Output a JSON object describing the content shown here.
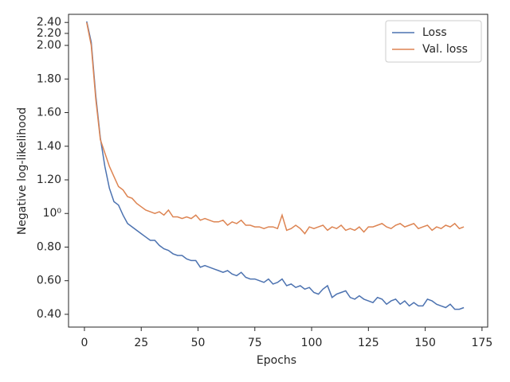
{
  "chart_data": {
    "type": "line",
    "xlabel": "Epochs",
    "ylabel": "Negative log-likelihood",
    "x": [
      1,
      3,
      5,
      7,
      9,
      11,
      13,
      15,
      17,
      19,
      21,
      23,
      25,
      27,
      29,
      31,
      33,
      35,
      37,
      39,
      41,
      43,
      45,
      47,
      49,
      51,
      53,
      55,
      57,
      59,
      61,
      63,
      65,
      67,
      69,
      71,
      73,
      75,
      77,
      79,
      81,
      83,
      85,
      87,
      89,
      91,
      93,
      95,
      97,
      99,
      101,
      103,
      105,
      107,
      109,
      111,
      113,
      115,
      117,
      119,
      121,
      123,
      125,
      127,
      129,
      131,
      133,
      135,
      137,
      139,
      141,
      143,
      145,
      147,
      149,
      151,
      153,
      155,
      157,
      159,
      161,
      163,
      165,
      167
    ],
    "series": [
      {
        "name": "Loss",
        "color": "#4c72b0",
        "values": [
          2.42,
          2.05,
          1.7,
          1.45,
          1.28,
          1.15,
          1.07,
          1.05,
          0.99,
          0.94,
          0.92,
          0.9,
          0.88,
          0.86,
          0.84,
          0.84,
          0.81,
          0.79,
          0.78,
          0.76,
          0.75,
          0.75,
          0.73,
          0.72,
          0.72,
          0.68,
          0.69,
          0.68,
          0.67,
          0.66,
          0.65,
          0.66,
          0.64,
          0.63,
          0.65,
          0.62,
          0.61,
          0.61,
          0.6,
          0.59,
          0.61,
          0.58,
          0.59,
          0.61,
          0.57,
          0.58,
          0.56,
          0.57,
          0.55,
          0.56,
          0.53,
          0.52,
          0.55,
          0.57,
          0.5,
          0.52,
          0.53,
          0.54,
          0.5,
          0.49,
          0.51,
          0.49,
          0.48,
          0.47,
          0.5,
          0.49,
          0.46,
          0.48,
          0.49,
          0.46,
          0.48,
          0.45,
          0.47,
          0.45,
          0.45,
          0.49,
          0.48,
          0.46,
          0.45,
          0.44,
          0.46,
          0.43,
          0.43,
          0.44
        ]
      },
      {
        "name": "Val. loss",
        "color": "#dd8452",
        "values": [
          2.4,
          2.0,
          1.68,
          1.44,
          1.36,
          1.28,
          1.22,
          1.16,
          1.14,
          1.1,
          1.09,
          1.06,
          1.04,
          1.02,
          1.01,
          1.0,
          1.01,
          0.99,
          1.02,
          0.98,
          0.98,
          0.97,
          0.98,
          0.97,
          0.99,
          0.96,
          0.97,
          0.96,
          0.95,
          0.95,
          0.96,
          0.93,
          0.95,
          0.94,
          0.96,
          0.93,
          0.93,
          0.92,
          0.92,
          0.91,
          0.92,
          0.92,
          0.91,
          0.99,
          0.9,
          0.91,
          0.93,
          0.91,
          0.88,
          0.92,
          0.91,
          0.92,
          0.93,
          0.9,
          0.92,
          0.91,
          0.93,
          0.9,
          0.91,
          0.9,
          0.92,
          0.89,
          0.92,
          0.92,
          0.93,
          0.94,
          0.92,
          0.91,
          0.93,
          0.94,
          0.92,
          0.93,
          0.94,
          0.91,
          0.92,
          0.93,
          0.9,
          0.92,
          0.91,
          0.93,
          0.92,
          0.94,
          0.91,
          0.92
        ]
      }
    ],
    "xlim": [
      -7,
      177.5
    ],
    "xticks": [
      0,
      25,
      50,
      75,
      100,
      125,
      150,
      175
    ],
    "ylim": [
      0.324,
      2.56
    ],
    "yscale": "symlog",
    "linthresh": 2,
    "yticks": [
      {
        "value": 0.4,
        "label": "0.40"
      },
      {
        "value": 0.6,
        "label": "0.60"
      },
      {
        "value": 0.8,
        "label": "0.80"
      },
      {
        "value": 1,
        "label": "10⁰"
      },
      {
        "value": 1.2,
        "label": "1.20"
      },
      {
        "value": 1.4,
        "label": "1.40"
      },
      {
        "value": 1.6,
        "label": "1.60"
      },
      {
        "value": 1.8,
        "label": "1.80"
      },
      {
        "value": 2,
        "label": "2.00"
      },
      {
        "value": 2.2,
        "label": "2.20"
      },
      {
        "value": 2.4,
        "label": "2.40"
      }
    ],
    "legend": "upper right",
    "grid": false
  }
}
